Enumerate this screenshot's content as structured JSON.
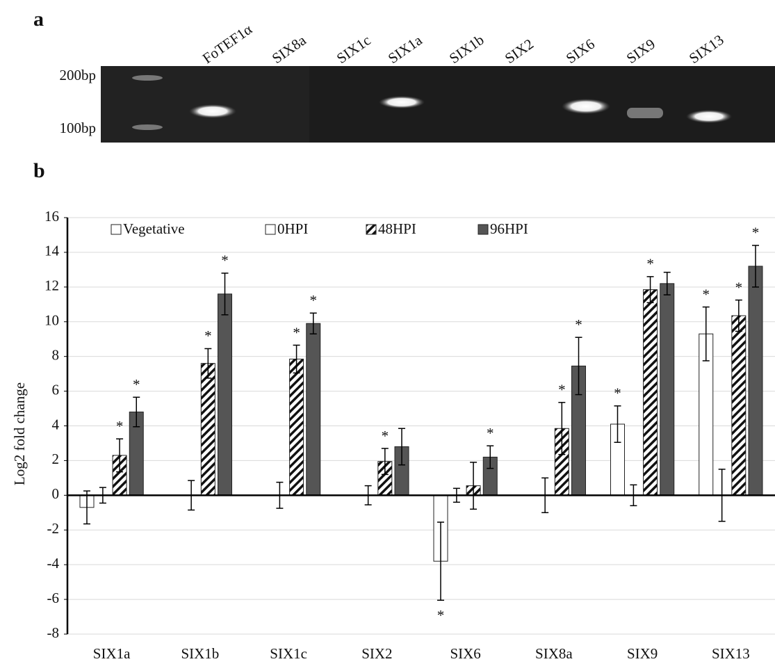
{
  "panels": [
    "a",
    "b"
  ],
  "gel": {
    "lanes": [
      "FoTEF1α",
      "SIX8a",
      "SIX1c",
      "SIX1a",
      "SIX1b",
      "SIX2",
      "SIX6",
      "SIX9",
      "SIX13"
    ],
    "markers": [
      "200bp",
      "100bp"
    ]
  },
  "chart_data": {
    "type": "bar",
    "y_label": "Log2 fold change",
    "categories": [
      "SIX1a",
      "SIX1b",
      "SIX1c",
      "SIX2",
      "SIX6",
      "SIX8a",
      "SIX9",
      "SIX13"
    ],
    "series": [
      {
        "name": "Vegetative",
        "color": "#ffffff",
        "values": [
          -0.7,
          0,
          0,
          0,
          -3.8,
          0,
          4.1,
          9.3
        ],
        "errors": [
          0.95,
          null,
          null,
          null,
          2.25,
          null,
          1.05,
          1.55
        ],
        "significance": [
          null,
          null,
          null,
          null,
          "*",
          null,
          "*",
          "*"
        ]
      },
      {
        "name": "0HPI",
        "color": "#ffffff",
        "values": [
          0,
          0,
          0,
          0,
          0,
          0,
          0,
          0
        ],
        "errors": [
          0.45,
          0.85,
          0.75,
          0.55,
          0.4,
          1.0,
          0.6,
          1.5
        ],
        "significance": [
          null,
          null,
          null,
          null,
          null,
          null,
          null,
          null
        ]
      },
      {
        "name": "48HPI",
        "color": "#ffffff",
        "hatch": true,
        "values": [
          2.3,
          7.6,
          7.85,
          1.95,
          0.55,
          3.85,
          11.85,
          10.35
        ],
        "errors": [
          0.95,
          0.85,
          0.8,
          0.75,
          1.35,
          1.5,
          0.75,
          0.9
        ],
        "significance": [
          "*",
          "*",
          "*",
          "*",
          null,
          "*",
          "*",
          "*"
        ]
      },
      {
        "name": "96HPI",
        "color": "#555555",
        "values": [
          4.8,
          11.6,
          9.9,
          2.8,
          2.2,
          7.45,
          12.2,
          13.2
        ],
        "errors": [
          0.85,
          1.2,
          0.6,
          1.05,
          0.65,
          1.65,
          0.65,
          1.2
        ],
        "significance": [
          "*",
          "*",
          "*",
          null,
          "*",
          "*",
          null,
          "*"
        ]
      }
    ],
    "ylim": [
      -8,
      16
    ],
    "yticks": [
      -8,
      -6,
      -4,
      -2,
      0,
      2,
      4,
      6,
      8,
      10,
      12,
      14,
      16
    ],
    "grid": true,
    "legend": "top"
  }
}
